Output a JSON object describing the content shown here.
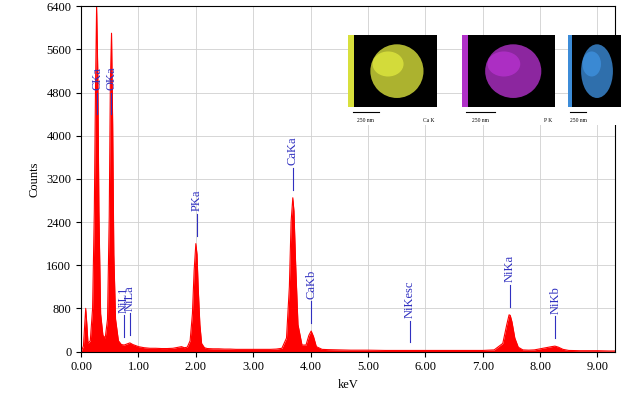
{
  "chart_data": {
    "type": "area",
    "xlabel": "keV",
    "ylabel": "Counts",
    "color": "#ff0000",
    "grid": true,
    "x": [
      0.0,
      0.04,
      0.08,
      0.1,
      0.12,
      0.16,
      0.2,
      0.23,
      0.25,
      0.27,
      0.29,
      0.31,
      0.34,
      0.38,
      0.42,
      0.46,
      0.49,
      0.51,
      0.53,
      0.55,
      0.57,
      0.6,
      0.65,
      0.7,
      0.75,
      0.8,
      0.85,
      0.9,
      0.95,
      1.0,
      1.1,
      1.2,
      1.3,
      1.4,
      1.5,
      1.6,
      1.7,
      1.75,
      1.8,
      1.85,
      1.9,
      1.94,
      1.97,
      2.0,
      2.02,
      2.04,
      2.07,
      2.1,
      2.15,
      2.2,
      2.3,
      2.4,
      2.5,
      2.6,
      2.7,
      2.8,
      2.9,
      3.0,
      3.1,
      3.2,
      3.3,
      3.4,
      3.5,
      3.58,
      3.63,
      3.66,
      3.69,
      3.71,
      3.74,
      3.78,
      3.85,
      3.92,
      3.97,
      4.01,
      4.05,
      4.1,
      4.2,
      4.3,
      4.5,
      4.7,
      5.0,
      5.3,
      5.6,
      5.9,
      6.2,
      6.5,
      6.8,
      7.0,
      7.2,
      7.35,
      7.42,
      7.46,
      7.48,
      7.51,
      7.56,
      7.62,
      7.7,
      7.8,
      7.9,
      8.0,
      8.1,
      8.2,
      8.26,
      8.32,
      8.4,
      8.5,
      8.7,
      9.0,
      9.2,
      9.3
    ],
    "values": [
      0,
      100,
      800,
      500,
      150,
      200,
      800,
      2600,
      4800,
      6400,
      5200,
      2600,
      700,
      300,
      250,
      600,
      2500,
      5000,
      5900,
      4200,
      1800,
      600,
      200,
      130,
      120,
      140,
      160,
      130,
      110,
      90,
      70,
      60,
      60,
      55,
      55,
      60,
      80,
      90,
      70,
      80,
      200,
      700,
      1500,
      2000,
      1800,
      1200,
      500,
      150,
      70,
      55,
      50,
      50,
      45,
      45,
      40,
      40,
      40,
      40,
      40,
      40,
      40,
      45,
      60,
      250,
      1200,
      2400,
      2850,
      2600,
      1600,
      500,
      120,
      120,
      300,
      380,
      280,
      90,
      40,
      35,
      30,
      25,
      25,
      20,
      20,
      20,
      20,
      20,
      20,
      20,
      30,
      150,
      500,
      680,
      670,
      550,
      250,
      80,
      30,
      25,
      30,
      50,
      70,
      90,
      100,
      80,
      40,
      20,
      15,
      15,
      10,
      10
    ],
    "xlim": [
      0,
      9.3
    ],
    "xticks": [
      {
        "value": 0,
        "label": "0.00"
      },
      {
        "value": 1,
        "label": "1.00"
      },
      {
        "value": 2,
        "label": "2.00"
      },
      {
        "value": 3,
        "label": "3.00"
      },
      {
        "value": 4,
        "label": "4.00"
      },
      {
        "value": 5,
        "label": "5.00"
      },
      {
        "value": 6,
        "label": "6.00"
      },
      {
        "value": 7,
        "label": "7.00"
      },
      {
        "value": 8,
        "label": "8.00"
      },
      {
        "value": 9,
        "label": "9.00"
      }
    ],
    "ylim": [
      0,
      6400
    ],
    "yticks": [
      0,
      800,
      1600,
      2400,
      3200,
      4000,
      4800,
      5600,
      6400
    ],
    "peak_labels": [
      {
        "label": "CKa",
        "x": 0.277
      },
      {
        "label": "OKa",
        "x": 0.525
      },
      {
        "label": "NiL1",
        "x": 0.743
      },
      {
        "label": "NiLa",
        "x": 0.851
      },
      {
        "label": "PKa",
        "x": 2.013
      },
      {
        "label": "CaKa",
        "x": 3.69
      },
      {
        "label": "CaKb",
        "x": 4.012
      },
      {
        "label": "NiKesc",
        "x": 5.73
      },
      {
        "label": "NiKa",
        "x": 7.471
      },
      {
        "label": "NiKb",
        "x": 8.264
      }
    ],
    "peak_label_color": "#3030c0",
    "insets": [
      {
        "element": "Ca K",
        "scale_bar": "250 nm",
        "color": "#d8e03c"
      },
      {
        "element": "P K",
        "scale_bar": "250 nm",
        "color": "#b030c8"
      },
      {
        "scale_bar": "250 nm",
        "color": "#3c8cd8"
      }
    ]
  }
}
